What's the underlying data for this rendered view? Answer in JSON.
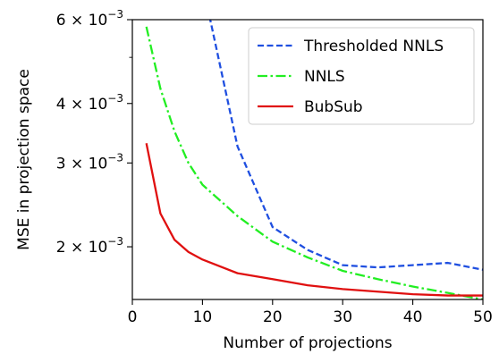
{
  "chart_data": {
    "type": "line",
    "xlabel": "Number of projections",
    "ylabel": "MSE in projection space",
    "xlim": [
      0,
      50
    ],
    "ylim": [
      0.00155,
      0.006
    ],
    "yscale": "log",
    "grid": false,
    "legend_position": "top-right",
    "x_ticks": [
      0,
      10,
      20,
      30,
      40,
      50
    ],
    "x_tick_labels": [
      "0",
      "10",
      "20",
      "30",
      "40",
      "50"
    ],
    "y_ticks": [
      0.002,
      0.003,
      0.004,
      0.006
    ],
    "y_tick_labels": [
      {
        "base": "2 × 10",
        "exp": "−3"
      },
      {
        "base": "3 × 10",
        "exp": "−3"
      },
      {
        "base": "4 × 10",
        "exp": "−3"
      },
      {
        "base": "6 × 10",
        "exp": "−3"
      }
    ],
    "y_minor_ticks": [
      0.005
    ],
    "series": [
      {
        "name": "Thresholded NNLS",
        "color": "#1f4fe0",
        "dash": "dashed",
        "x": [
          11,
          15,
          20,
          25,
          30,
          35,
          40,
          45,
          50
        ],
        "y": [
          0.0061,
          0.00325,
          0.0022,
          0.00197,
          0.00183,
          0.00181,
          0.00183,
          0.00185,
          0.00179
        ]
      },
      {
        "name": "NNLS",
        "color": "#22ee22",
        "dash": "dashdot",
        "x": [
          2,
          4,
          6,
          8,
          10,
          15,
          20,
          25,
          30,
          35,
          40,
          45,
          50
        ],
        "y": [
          0.0058,
          0.0043,
          0.0035,
          0.003,
          0.0027,
          0.00232,
          0.00205,
          0.0019,
          0.00178,
          0.00171,
          0.00165,
          0.0016,
          0.00155
        ]
      },
      {
        "name": "BubSub",
        "color": "#e01010",
        "dash": "solid",
        "x": [
          2,
          4,
          6,
          8,
          10,
          15,
          20,
          25,
          30,
          35,
          40,
          45,
          50
        ],
        "y": [
          0.0033,
          0.00235,
          0.00207,
          0.00195,
          0.00188,
          0.00176,
          0.00171,
          0.00166,
          0.00163,
          0.00161,
          0.00159,
          0.00158,
          0.00158
        ]
      }
    ]
  }
}
